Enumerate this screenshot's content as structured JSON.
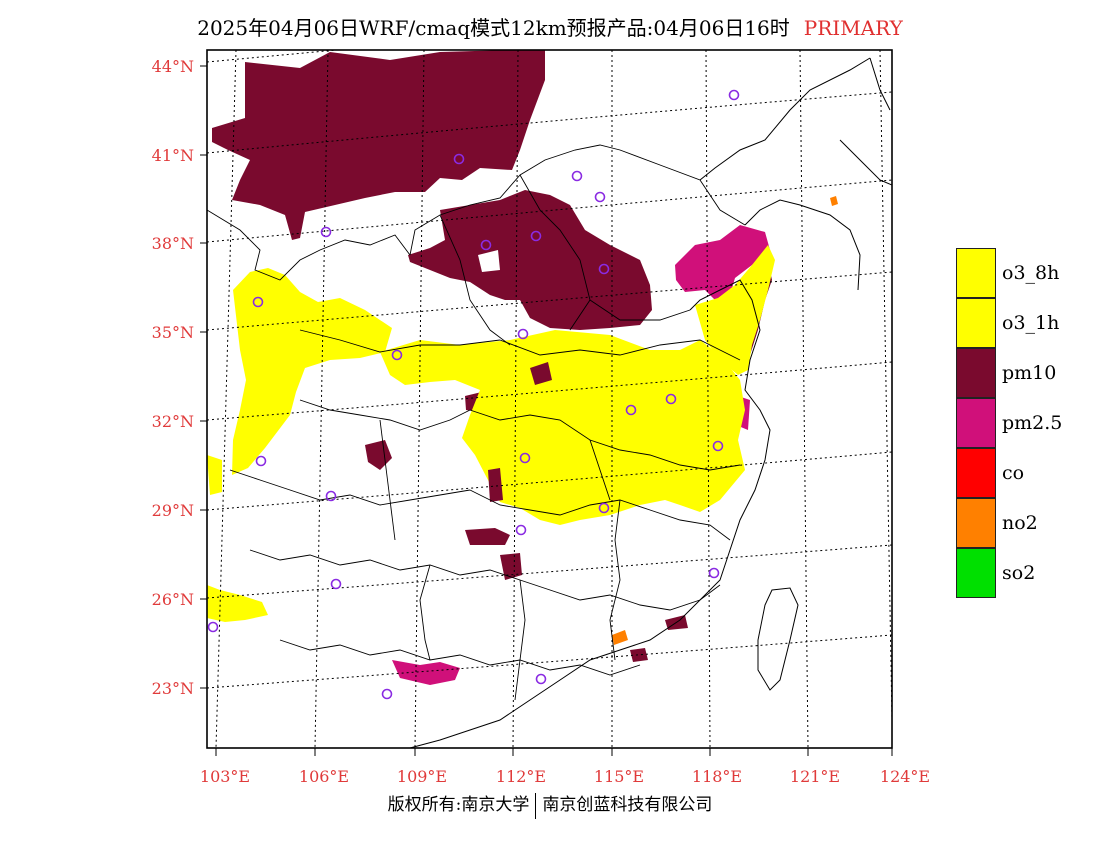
{
  "title": {
    "main": "2025年04月06日WRF/cmaq模式12km预报产品:04月06日16时",
    "badge": "PRIMARY"
  },
  "axes": {
    "lat_labels": [
      "44°N",
      "41°N",
      "38°N",
      "35°N",
      "32°N",
      "29°N",
      "26°N",
      "23°N"
    ],
    "lon_labels": [
      "103°E",
      "106°E",
      "109°E",
      "112°E",
      "115°E",
      "118°E",
      "121°E",
      "124°E"
    ]
  },
  "legend": [
    {
      "label": "o3_8h",
      "color": "#ffff00"
    },
    {
      "label": "o3_1h",
      "color": "#ffff00"
    },
    {
      "label": "pm10",
      "color": "#7a0a2e"
    },
    {
      "label": "pm2.5",
      "color": "#d0107a"
    },
    {
      "label": "co",
      "color": "#ff0000"
    },
    {
      "label": "no2",
      "color": "#ff8000"
    },
    {
      "label": "so2",
      "color": "#00e000"
    }
  ],
  "colors": {
    "station_marker": "#8a2be2",
    "axis_label": "#e03a3a"
  },
  "footer": {
    "left": "版权所有:南京大学",
    "right": "南京创蓝科技有限公司"
  }
}
